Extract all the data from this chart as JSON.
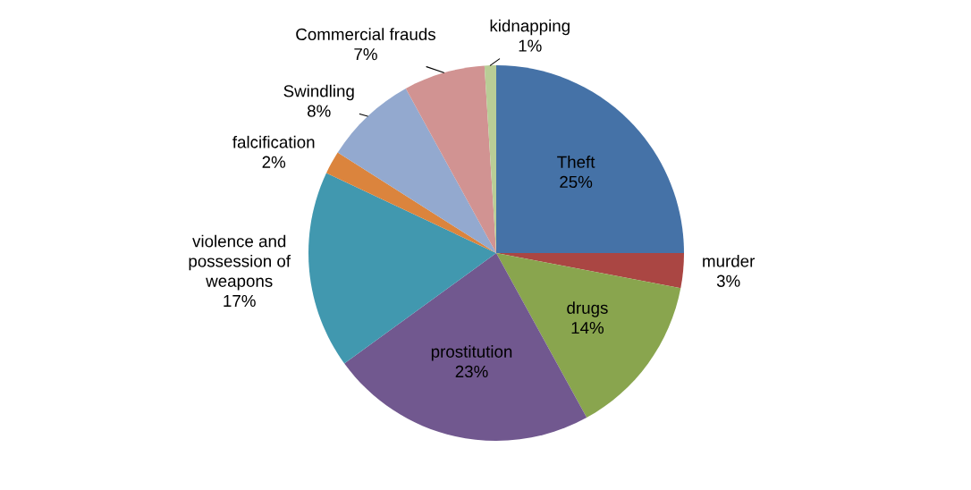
{
  "chart_data": {
    "type": "pie",
    "categories": [
      "Theft",
      "murder",
      "drugs",
      "prostitution",
      "violence and\npossession of\nweapons",
      "falcification",
      "Swindling",
      "Commercial frauds",
      "kidnapping"
    ],
    "values": [
      25,
      3,
      14,
      23,
      17,
      2,
      8,
      7,
      1
    ],
    "value_labels": [
      "25%",
      "3%",
      "14%",
      "23%",
      "17%",
      "2%",
      "8%",
      "7%",
      "1%"
    ],
    "colors": [
      "#4572a7",
      "#aa4643",
      "#89a54e",
      "#71588f",
      "#4198af",
      "#db843d",
      "#93a9cf",
      "#d19392",
      "#b9cd96"
    ],
    "legend": false
  }
}
